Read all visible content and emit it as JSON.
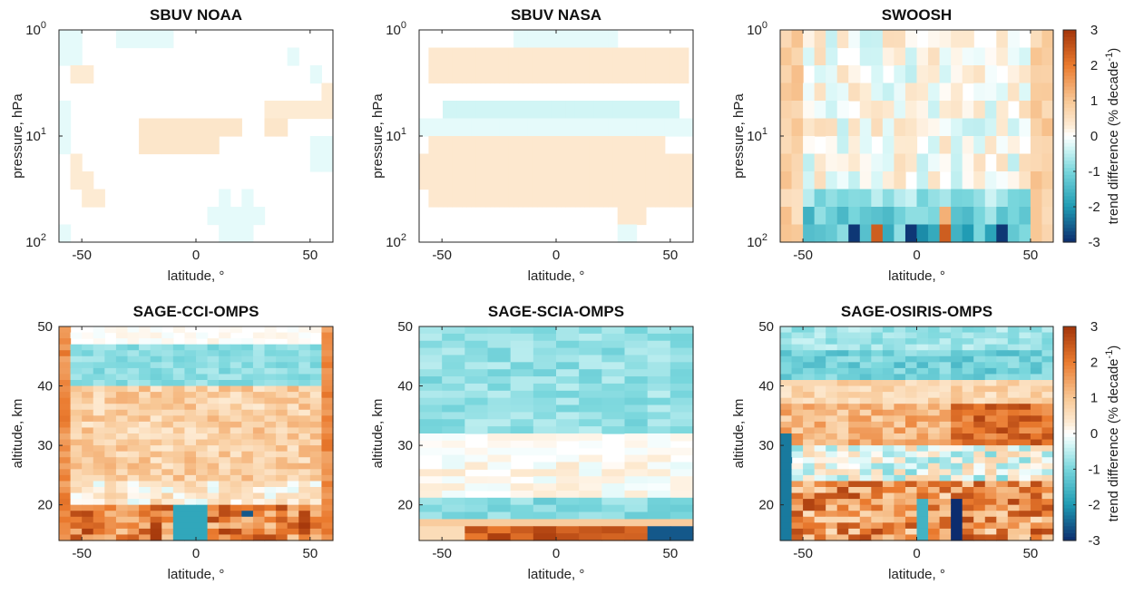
{
  "chart_data": [
    {
      "type": "heatmap",
      "title": "SBUV NOAA",
      "xlabel": "latitude, °",
      "ylabel": "pressure, hPa",
      "xlim": [
        -60,
        60
      ],
      "x_ticks": [
        "-50",
        "0",
        "50"
      ],
      "y_scale": "log",
      "ylim": [
        1,
        100
      ],
      "y_ticks": [
        {
          "base": "10",
          "exp": "0"
        },
        {
          "base": "10",
          "exp": "1"
        },
        {
          "base": "10",
          "exp": "2"
        }
      ],
      "grid": {
        "lat_bins": 24,
        "level_bins": 12,
        "cells": [
          [
            0,
            2,
            0,
            -0.2
          ],
          [
            5,
            10,
            0,
            -0.2
          ],
          [
            0,
            2,
            1,
            -0.2
          ],
          [
            20,
            21,
            1,
            -0.2
          ],
          [
            1,
            3,
            2,
            0.3
          ],
          [
            22,
            23,
            2,
            -0.2
          ],
          [
            23,
            24,
            3,
            0.3
          ],
          [
            24,
            25,
            4,
            0.3
          ],
          [
            18,
            24,
            4,
            0.3
          ],
          [
            0,
            1,
            4,
            -0.2
          ],
          [
            7,
            16,
            5,
            0.4
          ],
          [
            18,
            20,
            5,
            0.4
          ],
          [
            0,
            1,
            5,
            -0.2
          ],
          [
            7,
            14,
            6,
            0.4
          ],
          [
            0,
            1,
            6,
            -0.2
          ],
          [
            22,
            24,
            6,
            -0.2
          ],
          [
            1,
            2,
            7,
            0.3
          ],
          [
            22,
            24,
            7,
            -0.2
          ],
          [
            1,
            3,
            8,
            0.3
          ],
          [
            2,
            4,
            9,
            0.3
          ],
          [
            14,
            15,
            9,
            -0.2
          ],
          [
            16,
            17,
            9,
            -0.2
          ],
          [
            13,
            18,
            10,
            -0.2
          ],
          [
            14,
            17,
            11,
            -0.2
          ],
          [
            0,
            1,
            11,
            -0.2
          ]
        ]
      }
    },
    {
      "type": "heatmap",
      "title": "SBUV NASA",
      "xlabel": "latitude, °",
      "ylabel": "pressure, hPa",
      "xlim": [
        -60,
        60
      ],
      "x_ticks": [
        "-50",
        "0",
        "50"
      ],
      "y_scale": "log",
      "ylim": [
        1,
        100
      ],
      "y_ticks": [
        {
          "base": "10",
          "exp": "0"
        },
        {
          "base": "10",
          "exp": "1"
        },
        {
          "base": "10",
          "exp": "2"
        }
      ],
      "grid": {
        "lat_bins": 24,
        "level_bins": 12,
        "cells": [
          [
            20,
            42,
            0,
            -0.2
          ],
          [
            2,
            57,
            1,
            0.35
          ],
          [
            2,
            57,
            2,
            0.35
          ],
          [
            5,
            55,
            4,
            -0.35
          ],
          [
            0,
            58,
            5,
            -0.2
          ],
          [
            2,
            52,
            6,
            0.35
          ],
          [
            0,
            58,
            7,
            0.35
          ],
          [
            0,
            58,
            8,
            0.35
          ],
          [
            2,
            58,
            9,
            0.35
          ],
          [
            42,
            48,
            10,
            0.35
          ],
          [
            42,
            46,
            11,
            -0.2
          ]
        ]
      }
    },
    {
      "type": "heatmap",
      "title": "SWOOSH",
      "xlabel": "latitude, °",
      "ylabel": "pressure, hPa",
      "xlim": [
        -60,
        60
      ],
      "x_ticks": [
        "-50",
        "0",
        "50"
      ],
      "y_scale": "log",
      "ylim": [
        1,
        100
      ],
      "y_ticks": [
        {
          "base": "10",
          "exp": "0"
        },
        {
          "base": "10",
          "exp": "1"
        },
        {
          "base": "10",
          "exp": "2"
        }
      ],
      "has_colorbar": true
    },
    {
      "type": "heatmap",
      "title": "SAGE-CCI-OMPS",
      "xlabel": "latitude, °",
      "ylabel": "altitude, km",
      "xlim": [
        -60,
        60
      ],
      "x_ticks": [
        "-50",
        "0",
        "50"
      ],
      "ylim": [
        14,
        50
      ],
      "y_ticks": [
        "20",
        "30",
        "40",
        "50"
      ]
    },
    {
      "type": "heatmap",
      "title": "SAGE-SCIA-OMPS",
      "xlabel": "latitude, °",
      "ylabel": "altitude, km",
      "xlim": [
        -60,
        60
      ],
      "x_ticks": [
        "-50",
        "0",
        "50"
      ],
      "ylim": [
        14,
        50
      ],
      "y_ticks": [
        "20",
        "30",
        "40",
        "50"
      ]
    },
    {
      "type": "heatmap",
      "title": "SAGE-OSIRIS-OMPS",
      "xlabel": "latitude, °",
      "ylabel": "altitude, km",
      "xlim": [
        -60,
        60
      ],
      "x_ticks": [
        "-50",
        "0",
        "50"
      ],
      "ylim": [
        14,
        50
      ],
      "y_ticks": [
        "20",
        "30",
        "40",
        "50"
      ],
      "has_colorbar": true
    }
  ],
  "colorbar": {
    "label_text": "trend difference (% decade",
    "label_exp": "-1",
    "label_close": ")",
    "range": [
      -3,
      3
    ],
    "ticks": [
      "3",
      "2",
      "1",
      "0",
      "-1",
      "-2",
      "-3"
    ],
    "stops": [
      {
        "v": -3,
        "c": "#0c2c6e"
      },
      {
        "v": -2,
        "c": "#1f9bb3"
      },
      {
        "v": -1,
        "c": "#78d6dc"
      },
      {
        "v": -0.3,
        "c": "#d8f7f7"
      },
      {
        "v": 0,
        "c": "#ffffff"
      },
      {
        "v": 0.3,
        "c": "#fdebd3"
      },
      {
        "v": 1,
        "c": "#f8c795"
      },
      {
        "v": 2,
        "c": "#ea7a2e"
      },
      {
        "v": 3,
        "c": "#a2350a"
      }
    ]
  }
}
